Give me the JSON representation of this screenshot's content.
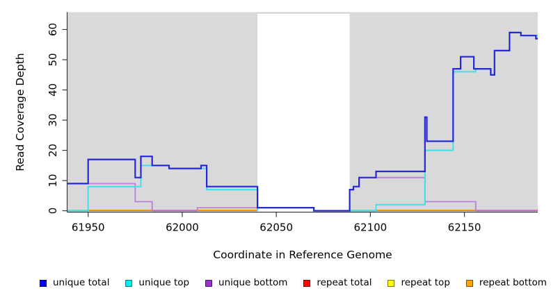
{
  "chart_data": {
    "type": "line",
    "subtype": "step-after-coverage-plot",
    "title": "",
    "xlabel": "Coordinate in Reference Genome",
    "ylabel": "Read Coverage Depth",
    "xlim": [
      61939,
      62189
    ],
    "ylim": [
      0,
      63
    ],
    "x_ticks": [
      61950,
      62000,
      62050,
      62100,
      62150
    ],
    "y_ticks": [
      0,
      10,
      20,
      30,
      40,
      50,
      60
    ],
    "grid": "off",
    "legend_position": "bottom",
    "background": {
      "panel_color": "#d9d9d9",
      "outer_color": "#ffffff",
      "masked_region": {
        "from": 62040,
        "to": 62089,
        "color": "#ffffff"
      }
    },
    "series": [
      {
        "name": "unique total",
        "line_color": "#2626d8",
        "render": true,
        "segments": [
          [
            [
              61939,
              9
            ],
            [
              61950,
              17
            ],
            [
              61975,
              11
            ],
            [
              61978,
              18
            ],
            [
              61984,
              15
            ],
            [
              61993,
              14
            ],
            [
              62010,
              15
            ],
            [
              62013,
              8
            ],
            [
              62040,
              1
            ],
            [
              62070,
              0
            ],
            [
              62089,
              7
            ],
            [
              62091,
              8
            ],
            [
              62094,
              11
            ],
            [
              62103,
              13
            ],
            [
              62129,
              31
            ],
            [
              62130,
              23
            ],
            [
              62144,
              47
            ],
            [
              62148,
              51
            ],
            [
              62155,
              47
            ],
            [
              62164,
              45
            ],
            [
              62166,
              53
            ],
            [
              62174,
              59
            ],
            [
              62180,
              58
            ],
            [
              62188,
              57
            ],
            [
              62189,
              57
            ]
          ]
        ]
      },
      {
        "name": "unique top",
        "line_color": "#3fe0e8",
        "render": true,
        "segments": [
          [
            [
              61939,
              0
            ],
            [
              61950,
              8
            ],
            [
              61978,
              15
            ],
            [
              61993,
              14
            ],
            [
              62013,
              7
            ],
            [
              62040,
              0
            ]
          ],
          [
            [
              62089,
              0
            ],
            [
              62103,
              2
            ],
            [
              62129,
              20
            ],
            [
              62144,
              46
            ],
            [
              62156,
              47
            ],
            [
              62164,
              45
            ],
            [
              62166,
              53
            ],
            [
              62174,
              59
            ],
            [
              62180,
              58
            ],
            [
              62189,
              58
            ]
          ]
        ]
      },
      {
        "name": "unique bottom",
        "line_color": "#b77fe0",
        "render": true,
        "segments": [
          [
            [
              61939,
              9
            ],
            [
              61975,
              3
            ],
            [
              61984,
              0
            ],
            [
              62008,
              1
            ],
            [
              62040,
              1
            ]
          ],
          [
            [
              62089,
              7
            ],
            [
              62091,
              8
            ],
            [
              62094,
              11
            ],
            [
              62129,
              3
            ],
            [
              62156,
              0
            ],
            [
              62189,
              0
            ]
          ]
        ]
      },
      {
        "name": "repeat total",
        "line_color": "#ff0000",
        "render": false,
        "segments": [
          [
            [
              61939,
              0
            ],
            [
              62040,
              0
            ]
          ],
          [
            [
              62089,
              0
            ],
            [
              62189,
              0
            ]
          ]
        ]
      },
      {
        "name": "repeat top",
        "line_color": "#ffff00",
        "render": false,
        "segments": [
          [
            [
              61939,
              0
            ],
            [
              62040,
              0
            ]
          ],
          [
            [
              62089,
              0
            ],
            [
              62189,
              0
            ]
          ]
        ]
      },
      {
        "name": "repeat bottom",
        "line_color": "#ff8c00",
        "render": false,
        "segments": [
          [
            [
              61939,
              0
            ],
            [
              62040,
              0
            ]
          ],
          [
            [
              62089,
              0
            ],
            [
              62189,
              0
            ]
          ]
        ]
      }
    ],
    "baseline_zero_segments": [
      {
        "from": 61939,
        "to": 61950,
        "color": "#7bd8a2"
      },
      {
        "from": 61950,
        "to": 62040,
        "color": "#ff8c00"
      },
      {
        "from": 61984,
        "to": 62008,
        "color": "#cf6fc4"
      },
      {
        "from": 62089,
        "to": 62103,
        "color": "#7bd8a2"
      },
      {
        "from": 62103,
        "to": 62156,
        "color": "#ff8c00"
      },
      {
        "from": 62156,
        "to": 62189,
        "color": "#cf6fc4"
      }
    ]
  },
  "axes_text": {
    "y_title": "Read Coverage Depth",
    "x_title": "Coordinate in Reference Genome"
  },
  "legend": {
    "items": [
      {
        "label": "unique total",
        "fill": "#0000ff",
        "border": "#00005a"
      },
      {
        "label": "unique top",
        "fill": "#00eeee",
        "border": "#007a7a"
      },
      {
        "label": "unique bottom",
        "fill": "#9932cc",
        "border": "#4b1a63"
      },
      {
        "label": "repeat total",
        "fill": "#ff0000",
        "border": "#7a0000"
      },
      {
        "label": "repeat top",
        "fill": "#ffff00",
        "border": "#7a7a00"
      },
      {
        "label": "repeat bottom",
        "fill": "#ffa500",
        "border": "#7a5200"
      }
    ]
  }
}
